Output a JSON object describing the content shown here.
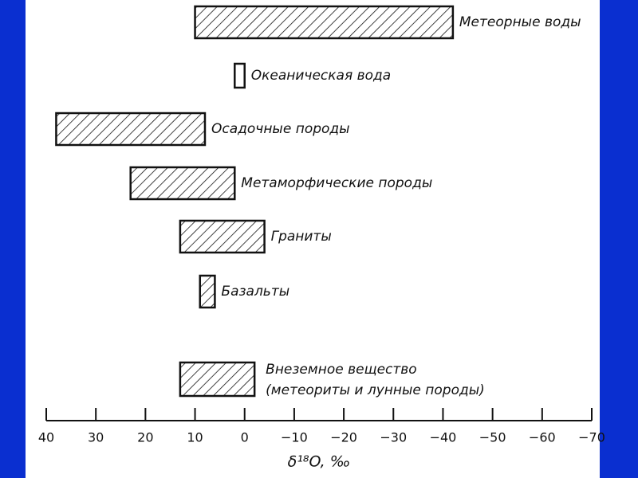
{
  "chart_data": {
    "type": "range-bar",
    "categories": [
      "Метеорные воды",
      "Океаническая вода",
      "Осадочные породы",
      "Метаморфические породы",
      "Граниты",
      "Базальты",
      [
        "Внеземное вещество",
        "(метеориты и лунные породы)"
      ]
    ],
    "values": [
      [
        10,
        -42
      ],
      [
        2,
        0
      ],
      [
        38,
        8
      ],
      [
        23,
        2
      ],
      [
        13,
        -4
      ],
      [
        9,
        6
      ],
      [
        13,
        -2
      ]
    ],
    "color": "#111111",
    "xlabel": "δ¹⁸O, ‰",
    "xlim": [
      40,
      -70
    ],
    "xticks": [
      40,
      30,
      20,
      10,
      0,
      {
        "value": -10,
        "label": "−10"
      },
      {
        "value": -20,
        "label": "−20"
      },
      {
        "value": -30,
        "label": "−30"
      },
      {
        "value": -40,
        "label": "−40"
      },
      {
        "value": -50,
        "label": "−50"
      },
      {
        "value": -60,
        "label": "−60"
      },
      {
        "value": -70,
        "label": "−70"
      }
    ]
  }
}
